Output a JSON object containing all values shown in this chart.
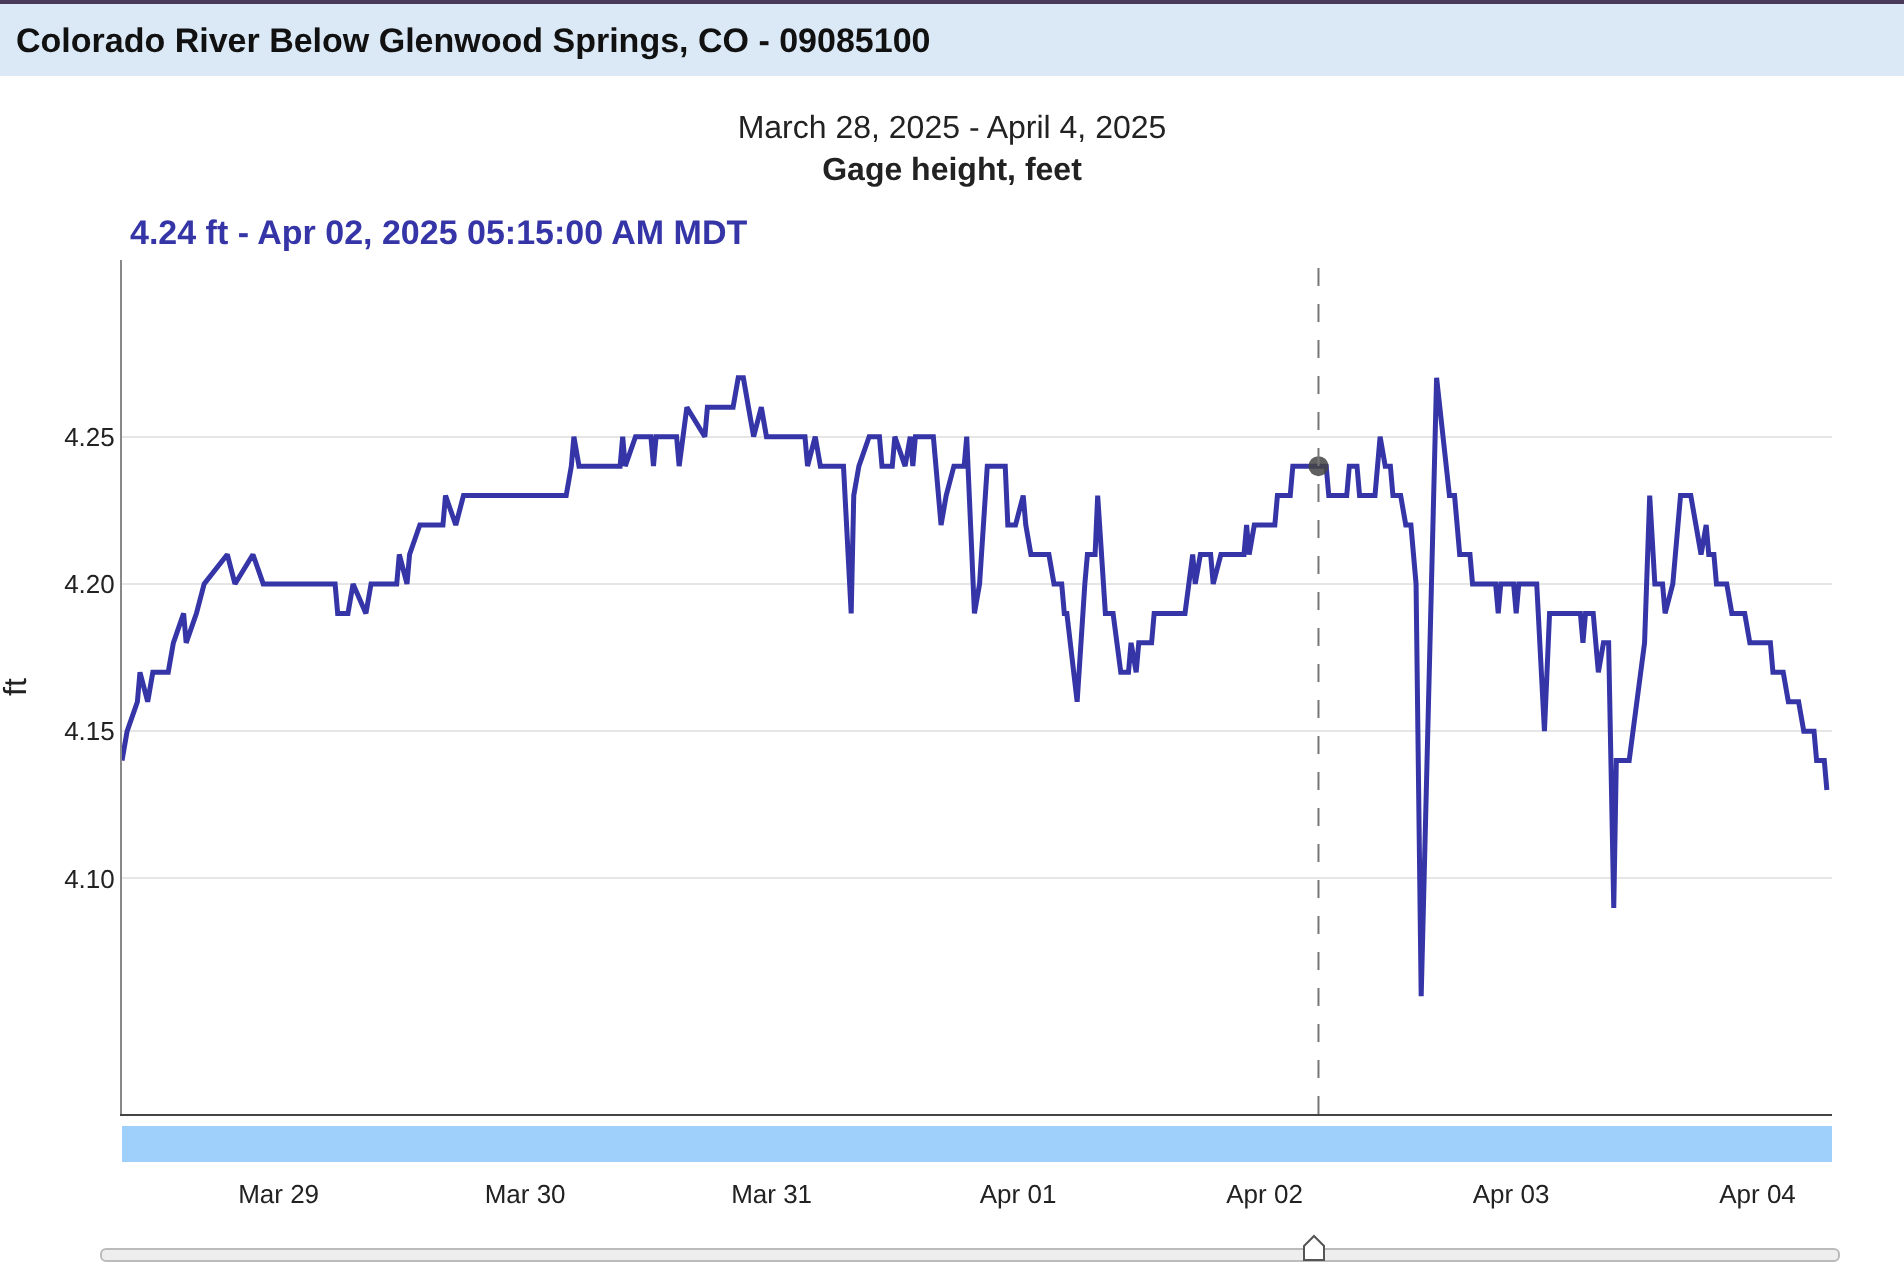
{
  "chart_data": {
    "type": "line",
    "title": "Colorado River Below Glenwood Springs, CO - 09085100",
    "subtitle": "March 28, 2025 - April 4, 2025\nGage height, feet",
    "ylabel": "ft",
    "annotations": [
      "4.24 ft - Apr 02, 2025 05:15:00 AM MDT"
    ],
    "ref_lines": [
      {
        "axis": "x",
        "value": "2025-04-02T05:15",
        "color": "#777777",
        "line_style": "dashed"
      }
    ],
    "xlim": [
      "2025-03-28T08:45",
      "2025-04-04T07:15"
    ],
    "xticks": [
      {
        "value": "2025-03-29",
        "label": "Mar 29"
      },
      {
        "value": "2025-03-30",
        "label": "Mar 30"
      },
      {
        "value": "2025-03-31",
        "label": "Mar 31"
      },
      {
        "value": "2025-04-01",
        "label": "Apr 01"
      },
      {
        "value": "2025-04-02",
        "label": "Apr 02"
      },
      {
        "value": "2025-04-03",
        "label": "Apr 03"
      },
      {
        "value": "2025-04-04",
        "label": "Apr 04"
      }
    ],
    "ylim": [
      4.02,
      4.31
    ],
    "yticks": [
      {
        "value": 4.1,
        "label": "4.10"
      },
      {
        "value": 4.15,
        "label": "4.15"
      },
      {
        "value": 4.2,
        "label": "4.20"
      },
      {
        "value": 4.25,
        "label": "4.25"
      }
    ],
    "grid": "y",
    "line_style": "solid",
    "series": [
      {
        "color": "#3535a8",
        "x": [
          "2025-03-28T08:45",
          "2025-03-28T09:15",
          "2025-03-28T10:15",
          "2025-03-28T10:30",
          "2025-03-28T11:15",
          "2025-03-28T11:45",
          "2025-03-28T13:15",
          "2025-03-28T13:45",
          "2025-03-28T14:45",
          "2025-03-28T15:00",
          "2025-03-28T16:00",
          "2025-03-28T16:45",
          "2025-03-28T19:00",
          "2025-03-28T19:45",
          "2025-03-28T21:30",
          "2025-03-28T22:30",
          "2025-03-29T05:30",
          "2025-03-29T05:45",
          "2025-03-29T06:45",
          "2025-03-29T07:15",
          "2025-03-29T08:30",
          "2025-03-29T09:00",
          "2025-03-29T11:30",
          "2025-03-29T11:45",
          "2025-03-29T12:30",
          "2025-03-29T12:45",
          "2025-03-29T13:45",
          "2025-03-29T16:00",
          "2025-03-29T16:15",
          "2025-03-29T17:15",
          "2025-03-29T18:00",
          "2025-03-30T04:00",
          "2025-03-30T04:30",
          "2025-03-30T04:45",
          "2025-03-30T05:15",
          "2025-03-30T09:15",
          "2025-03-30T09:30",
          "2025-03-30T09:45",
          "2025-03-30T10:45",
          "2025-03-30T12:15",
          "2025-03-30T12:30",
          "2025-03-30T12:45",
          "2025-03-30T14:45",
          "2025-03-30T15:00",
          "2025-03-30T15:45",
          "2025-03-30T17:30",
          "2025-03-30T17:45",
          "2025-03-30T20:15",
          "2025-03-30T20:45",
          "2025-03-30T21:15",
          "2025-03-30T21:45",
          "2025-03-30T22:15",
          "2025-03-30T23:00",
          "2025-03-30T23:30",
          "2025-03-31T03:15",
          "2025-03-31T03:30",
          "2025-03-31T04:15",
          "2025-03-31T04:45",
          "2025-03-31T07:00",
          "2025-03-31T07:45",
          "2025-03-31T08:00",
          "2025-03-31T08:30",
          "2025-03-31T09:30",
          "2025-03-31T10:30",
          "2025-03-31T10:45",
          "2025-03-31T11:45",
          "2025-03-31T12:00",
          "2025-03-31T13:00",
          "2025-03-31T13:30",
          "2025-03-31T13:45",
          "2025-03-31T14:00",
          "2025-03-31T15:45",
          "2025-03-31T16:30",
          "2025-03-31T17:00",
          "2025-03-31T17:45",
          "2025-03-31T18:45",
          "2025-03-31T19:00",
          "2025-03-31T19:45",
          "2025-03-31T20:15",
          "2025-03-31T21:00",
          "2025-03-31T22:45",
          "2025-03-31T23:00",
          "2025-03-31T23:45",
          "2025-04-01T00:30",
          "2025-04-01T00:45",
          "2025-04-01T01:15",
          "2025-04-01T03:00",
          "2025-04-01T03:30",
          "2025-04-01T04:15",
          "2025-04-01T04:30",
          "2025-04-01T04:45",
          "2025-04-01T05:45",
          "2025-04-01T06:30",
          "2025-04-01T06:45",
          "2025-04-01T07:30",
          "2025-04-01T07:45",
          "2025-04-01T08:30",
          "2025-04-01T09:15",
          "2025-04-01T10:00",
          "2025-04-01T10:45",
          "2025-04-01T11:00",
          "2025-04-01T11:30",
          "2025-04-01T11:45",
          "2025-04-01T13:00",
          "2025-04-01T13:15",
          "2025-04-01T16:15",
          "2025-04-01T17:00",
          "2025-04-01T17:15",
          "2025-04-01T17:45",
          "2025-04-01T18:45",
          "2025-04-01T19:00",
          "2025-04-01T19:45",
          "2025-04-01T22:00",
          "2025-04-01T22:15",
          "2025-04-01T22:30",
          "2025-04-01T23:00",
          "2025-04-02T01:00",
          "2025-04-02T01:15",
          "2025-04-02T02:30",
          "2025-04-02T02:45",
          "2025-04-02T05:15",
          "2025-04-02T06:00",
          "2025-04-02T06:15",
          "2025-04-02T08:00",
          "2025-04-02T08:15",
          "2025-04-02T09:00",
          "2025-04-02T09:15",
          "2025-04-02T10:45",
          "2025-04-02T11:15",
          "2025-04-02T11:45",
          "2025-04-02T12:15",
          "2025-04-02T12:30",
          "2025-04-02T13:15",
          "2025-04-02T13:45",
          "2025-04-02T14:15",
          "2025-04-02T14:45",
          "2025-04-02T15:15",
          "2025-04-02T16:45",
          "2025-04-02T18:00",
          "2025-04-02T18:30",
          "2025-04-02T19:00",
          "2025-04-02T20:00",
          "2025-04-02T20:15",
          "2025-04-02T22:30",
          "2025-04-02T22:45",
          "2025-04-02T23:00",
          "2025-04-03T00:15",
          "2025-04-03T00:30",
          "2025-04-03T00:45",
          "2025-04-03T02:30",
          "2025-04-03T03:15",
          "2025-04-03T03:45",
          "2025-04-03T06:45",
          "2025-04-03T07:00",
          "2025-04-03T07:15",
          "2025-04-03T08:00",
          "2025-04-03T08:30",
          "2025-04-03T09:00",
          "2025-04-03T09:30",
          "2025-04-03T10:00",
          "2025-04-03T10:15",
          "2025-04-03T11:30",
          "2025-04-03T12:15",
          "2025-04-03T13:00",
          "2025-04-03T13:30",
          "2025-04-03T14:00",
          "2025-04-03T14:45",
          "2025-04-03T15:00",
          "2025-04-03T15:45",
          "2025-04-03T16:30",
          "2025-04-03T17:30",
          "2025-04-03T18:00",
          "2025-04-03T18:30",
          "2025-04-03T19:00",
          "2025-04-03T19:15",
          "2025-04-03T19:45",
          "2025-04-03T20:00",
          "2025-04-03T21:00",
          "2025-04-03T21:30",
          "2025-04-03T22:45",
          "2025-04-03T23:15",
          "2025-04-04T01:15",
          "2025-04-04T01:30",
          "2025-04-04T02:30",
          "2025-04-04T03:00",
          "2025-04-04T04:00",
          "2025-04-04T04:30",
          "2025-04-04T05:30",
          "2025-04-04T05:45",
          "2025-04-04T06:30",
          "2025-04-04T06:45"
        ],
        "values": [
          4.14,
          4.15,
          4.16,
          4.17,
          4.16,
          4.17,
          4.17,
          4.18,
          4.19,
          4.18,
          4.19,
          4.2,
          4.21,
          4.2,
          4.21,
          4.2,
          4.2,
          4.19,
          4.19,
          4.2,
          4.19,
          4.2,
          4.2,
          4.21,
          4.2,
          4.21,
          4.22,
          4.22,
          4.23,
          4.22,
          4.23,
          4.23,
          4.24,
          4.25,
          4.24,
          4.24,
          4.25,
          4.24,
          4.25,
          4.25,
          4.24,
          4.25,
          4.25,
          4.24,
          4.26,
          4.25,
          4.26,
          4.26,
          4.27,
          4.27,
          4.26,
          4.25,
          4.26,
          4.25,
          4.25,
          4.24,
          4.25,
          4.24,
          4.24,
          4.19,
          4.23,
          4.24,
          4.25,
          4.25,
          4.24,
          4.24,
          4.25,
          4.24,
          4.25,
          4.24,
          4.25,
          4.25,
          4.22,
          4.23,
          4.24,
          4.24,
          4.25,
          4.19,
          4.2,
          4.24,
          4.24,
          4.22,
          4.22,
          4.23,
          4.22,
          4.21,
          4.21,
          4.2,
          4.2,
          4.19,
          4.19,
          4.16,
          4.2,
          4.21,
          4.21,
          4.23,
          4.19,
          4.19,
          4.17,
          4.17,
          4.18,
          4.17,
          4.18,
          4.18,
          4.19,
          4.19,
          4.21,
          4.2,
          4.21,
          4.21,
          4.2,
          4.21,
          4.21,
          4.22,
          4.21,
          4.22,
          4.22,
          4.23,
          4.23,
          4.24,
          4.24,
          4.24,
          4.23,
          4.23,
          4.24,
          4.24,
          4.23,
          4.23,
          4.25,
          4.24,
          4.24,
          4.23,
          4.23,
          4.22,
          4.22,
          4.2,
          4.06,
          4.27,
          4.23,
          4.23,
          4.21,
          4.21,
          4.2,
          4.2,
          4.19,
          4.2,
          4.2,
          4.19,
          4.2,
          4.2,
          4.15,
          4.19,
          4.19,
          4.18,
          4.19,
          4.19,
          4.17,
          4.18,
          4.18,
          4.09,
          4.14,
          4.14,
          4.16,
          4.18,
          4.23,
          4.2,
          4.2,
          4.19,
          4.2,
          4.23,
          4.23,
          4.22,
          4.21,
          4.22,
          4.21,
          4.21,
          4.2,
          4.2,
          4.19,
          4.19,
          4.18,
          4.18,
          4.17,
          4.17,
          4.16,
          4.16,
          4.15,
          4.15,
          4.14,
          4.14,
          4.13
        ]
      }
    ]
  }
}
